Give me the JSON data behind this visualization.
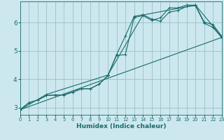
{
  "xlabel": "Humidex (Indice chaleur)",
  "bg_color": "#cce8ee",
  "grid_color": "#9bbfc8",
  "line_color": "#1a6b6b",
  "xlim": [
    0,
    23
  ],
  "ylim": [
    2.75,
    6.75
  ],
  "yticks": [
    3,
    4,
    5,
    6
  ],
  "xticks": [
    0,
    1,
    2,
    3,
    4,
    5,
    6,
    7,
    8,
    9,
    10,
    11,
    12,
    13,
    14,
    15,
    16,
    17,
    18,
    19,
    20,
    21,
    22,
    23
  ],
  "series": [
    [
      0,
      2.93,
      1,
      3.18,
      2,
      3.27,
      3,
      3.43,
      4,
      3.45,
      5,
      3.45,
      6,
      3.55,
      7,
      3.67,
      8,
      3.67,
      9,
      3.83,
      10,
      4.13,
      11,
      4.85,
      12,
      4.87,
      13,
      6.18,
      14,
      6.25,
      15,
      6.08,
      16,
      6.17,
      17,
      6.52,
      18,
      6.52,
      19,
      6.62,
      20,
      6.62,
      21,
      6.02,
      22,
      5.93,
      23,
      5.52
    ],
    [
      0,
      2.93,
      1,
      3.18,
      2,
      3.27,
      3,
      3.43,
      4,
      3.45,
      5,
      3.45,
      6,
      3.55,
      7,
      3.67,
      8,
      3.67,
      9,
      3.83,
      10,
      4.13,
      11,
      4.87,
      12,
      5.53,
      13,
      6.22,
      14,
      6.28,
      15,
      6.13,
      16,
      6.05,
      17,
      6.37,
      18,
      6.43,
      19,
      6.57,
      20,
      6.6,
      21,
      5.98,
      22,
      5.83,
      23,
      5.47
    ],
    [
      0,
      2.93,
      3,
      3.47,
      10,
      4.15,
      14,
      6.27,
      20,
      6.62,
      23,
      5.5
    ],
    [
      0,
      2.93,
      23,
      5.48
    ]
  ],
  "marker_series": [
    0,
    1,
    2
  ],
  "xlabel_fontsize": 6.5,
  "xlabel_fontweight": "bold",
  "tick_fontsize_x": 4.8,
  "tick_fontsize_y": 6.5,
  "linewidth": 0.8,
  "markersize": 2.5,
  "markeredgewidth": 0.7
}
